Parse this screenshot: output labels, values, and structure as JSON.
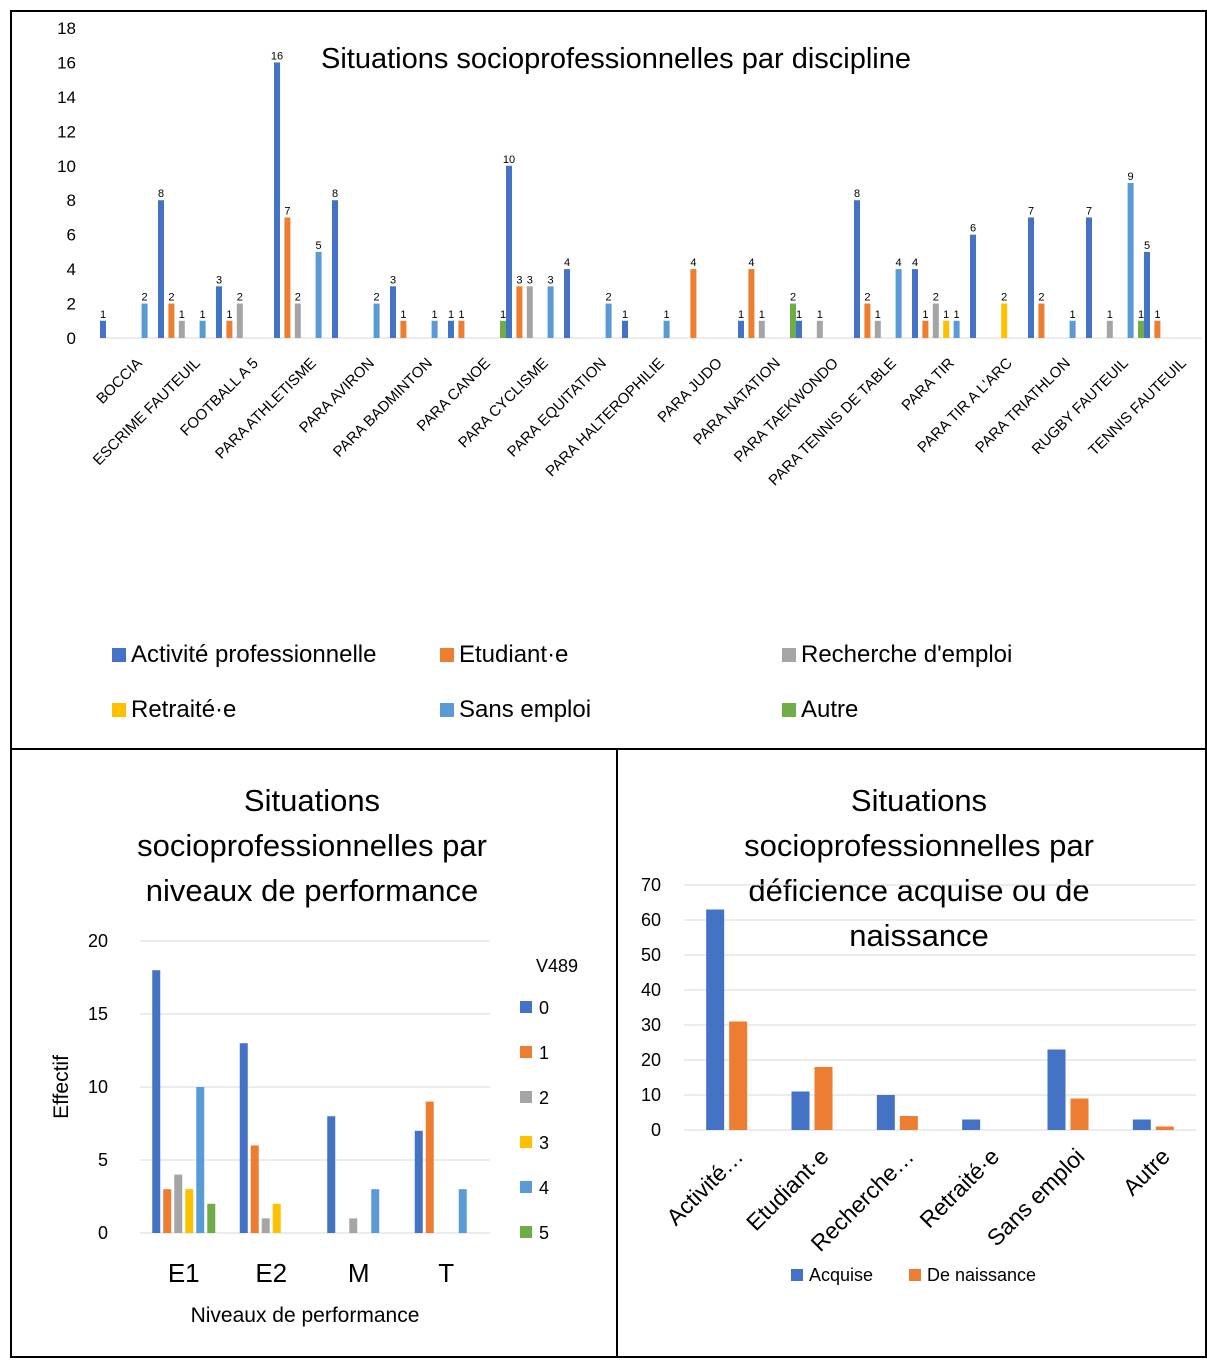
{
  "colors": {
    "blue": "#4472C4",
    "orange": "#ED7D31",
    "gray": "#A5A5A5",
    "yellow": "#FFC000",
    "lightblue": "#5B9BD5",
    "green": "#70AD47",
    "grid": "#D9D9D9"
  },
  "chart_data": [
    {
      "type": "bar",
      "title": "Situations socioprofessionnelles par discipline",
      "xlabel": "",
      "ylabel": "",
      "ylim": [
        0,
        18
      ],
      "yticks": [
        "0",
        "2",
        "4",
        "6",
        "8",
        "10",
        "12",
        "14",
        "16",
        "18"
      ],
      "grid": false,
      "legend_position": "bottom",
      "categories": [
        "BOCCIA",
        "ESCRIME FAUTEUIL",
        "FOOTBALL A 5",
        "PARA ATHLETISME",
        "PARA AVIRON",
        "PARA BADMINTON",
        "PARA CANOE",
        "PARA CYCLISME",
        "PARA EQUITATION",
        "PARA HALTEROPHILIE",
        "PARA JUDO",
        "PARA NATATION",
        "PARA TAEKWONDO",
        "PARA TENNIS DE TABLE",
        "PARA TIR",
        "PARA TIR A L'ARC",
        "PARA TRIATHLON",
        "RUGBY FAUTEUIL",
        "TENNIS FAUTEUIL"
      ],
      "series": [
        {
          "name": "Activité professionnelle",
          "values": [
            1,
            8,
            3,
            16,
            8,
            3,
            1,
            10,
            4,
            1,
            0,
            1,
            1,
            8,
            4,
            6,
            7,
            7,
            5
          ]
        },
        {
          "name": "Etudiant·e",
          "values": [
            0,
            2,
            1,
            7,
            0,
            1,
            1,
            3,
            0,
            0,
            4,
            4,
            0,
            2,
            1,
            0,
            2,
            0,
            1
          ]
        },
        {
          "name": "Recherche d'emploi",
          "values": [
            0,
            1,
            2,
            2,
            0,
            0,
            0,
            3,
            0,
            0,
            0,
            1,
            1,
            1,
            2,
            0,
            0,
            1,
            0
          ]
        },
        {
          "name": "Retraité·e",
          "values": [
            0,
            0,
            0,
            0,
            0,
            0,
            0,
            0,
            0,
            0,
            0,
            0,
            0,
            0,
            1,
            2,
            0,
            0,
            0
          ]
        },
        {
          "name": "Sans emploi",
          "values": [
            2,
            1,
            0,
            5,
            2,
            1,
            0,
            3,
            2,
            1,
            0,
            0,
            0,
            4,
            1,
            0,
            1,
            9,
            0
          ]
        },
        {
          "name": "Autre",
          "values": [
            0,
            0,
            0,
            0,
            0,
            0,
            1,
            0,
            0,
            0,
            0,
            2,
            0,
            0,
            0,
            0,
            0,
            1,
            0
          ]
        }
      ]
    },
    {
      "type": "bar",
      "title": "Situations socioprofessionnelles par niveaux de performance",
      "title_lines": [
        "Situations",
        "socioprofessionnelles par",
        "niveaux de performance"
      ],
      "xlabel": "Niveaux de performance",
      "ylabel": "Effectif",
      "ylim": [
        0,
        20
      ],
      "yticks": [
        "0",
        "5",
        "10",
        "15",
        "20"
      ],
      "grid": true,
      "legend_title": "V489",
      "legend_position": "right",
      "categories": [
        "E1",
        "E2",
        "M",
        "T"
      ],
      "series": [
        {
          "name": "0",
          "values": [
            18,
            13,
            8,
            7
          ]
        },
        {
          "name": "1",
          "values": [
            3,
            6,
            0,
            9
          ]
        },
        {
          "name": "2",
          "values": [
            4,
            1,
            1,
            0
          ]
        },
        {
          "name": "3",
          "values": [
            3,
            2,
            0,
            0
          ]
        },
        {
          "name": "4",
          "values": [
            10,
            0,
            3,
            3
          ]
        },
        {
          "name": "5",
          "values": [
            2,
            0,
            0,
            0
          ]
        }
      ]
    },
    {
      "type": "bar",
      "title": "Situations socioprofessionnelles par déficience acquise ou de naissance",
      "title_lines": [
        "Situations",
        "socioprofessionnelles par",
        "déficience acquise ou de",
        "naissance"
      ],
      "xlabel": "",
      "ylabel": "",
      "ylim": [
        0,
        70
      ],
      "yticks": [
        "0",
        "10",
        "20",
        "30",
        "40",
        "50",
        "60",
        "70"
      ],
      "grid": true,
      "legend_position": "bottom",
      "categories": [
        "Activité…",
        "Etudiant·e",
        "Recherche…",
        "Retraité·e",
        "Sans emploi",
        "Autre"
      ],
      "series": [
        {
          "name": "Acquise",
          "values": [
            63,
            11,
            10,
            3,
            23,
            3
          ]
        },
        {
          "name": "De naissance",
          "values": [
            31,
            18,
            4,
            0,
            9,
            1
          ]
        }
      ]
    }
  ]
}
